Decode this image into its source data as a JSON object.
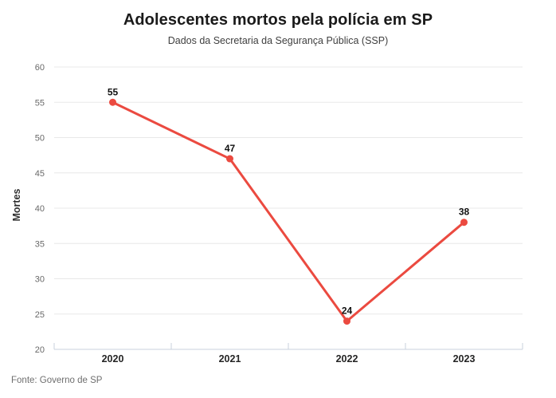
{
  "header": {
    "title": "Adolescentes mortos pela polícia em SP",
    "subtitle": "Dados da Secretaria da Segurança Pública (SSP)"
  },
  "footer": {
    "source": "Fonte: Governo de SP"
  },
  "chart_data": {
    "type": "line",
    "categories": [
      "2020",
      "2021",
      "2022",
      "2023"
    ],
    "values": [
      55,
      47,
      24,
      38
    ],
    "title": "Adolescentes mortos pela polícia em SP",
    "subtitle": "Dados da Secretaria da Segurança Pública (SSP)",
    "source": "Fonte: Governo de SP",
    "xlabel": "",
    "ylabel": "Mortes",
    "ylim": [
      20,
      60
    ],
    "ytick_step": 5,
    "grid": true,
    "legend": false,
    "point_labels": [
      "55",
      "47",
      "24",
      "38"
    ],
    "colors": {
      "line": "#eb4a40",
      "point": "#eb4a40",
      "grid": "#e8e8e8",
      "axis": "#c9d2dc",
      "tick_label": "#696969",
      "value_label": "#111111",
      "x_label": "#252525",
      "ylabel": "#2e2e2e"
    }
  }
}
